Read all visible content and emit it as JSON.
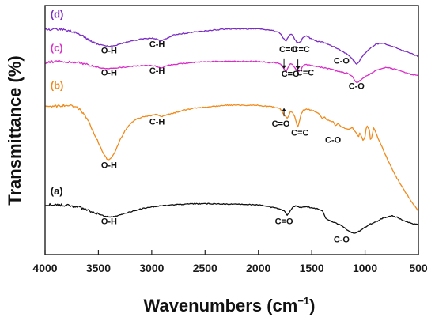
{
  "chart_data": {
    "type": "line",
    "title": "",
    "xlabel": "Wavenumbers (cm",
    "xlabel_sup": "−1",
    "xlabel_close": ")",
    "ylabel": "Transmittance (%)",
    "xlim": [
      4000,
      500
    ],
    "x_reversed": true,
    "x_ticks": [
      4000,
      3500,
      3000,
      2500,
      2000,
      1500,
      1000,
      500
    ],
    "y_ticks_shown": false,
    "grid": false,
    "series": [
      {
        "name": "(a)",
        "color": "#111111",
        "x": [
          4000,
          3900,
          3800,
          3700,
          3600,
          3500,
          3450,
          3400,
          3350,
          3300,
          3200,
          3100,
          3000,
          2900,
          2800,
          2600,
          2400,
          2200,
          2000,
          1900,
          1800,
          1760,
          1730,
          1700,
          1680,
          1650,
          1600,
          1550,
          1500,
          1450,
          1400,
          1370,
          1350,
          1300,
          1250,
          1200,
          1150,
          1100,
          1050,
          1000,
          950,
          900,
          850,
          800,
          750,
          700,
          650,
          600,
          550,
          500
        ],
        "y": [
          0.9,
          0.9,
          0.85,
          0.7,
          0.4,
          0.0,
          -0.2,
          -0.3,
          -0.25,
          -0.1,
          0.2,
          0.5,
          0.7,
          0.8,
          0.9,
          1.0,
          1.0,
          0.95,
          0.9,
          0.7,
          0.5,
          0.3,
          -0.1,
          0.3,
          0.6,
          0.8,
          0.6,
          0.7,
          0.6,
          0.5,
          0.3,
          -0.4,
          -0.6,
          -0.8,
          -1.0,
          -1.3,
          -1.7,
          -1.9,
          -1.7,
          -1.3,
          -1.0,
          -0.8,
          -0.5,
          -0.3,
          -0.2,
          -0.3,
          -0.6,
          -0.8,
          -1.0,
          -1.0
        ]
      },
      {
        "name": "(b)",
        "color": "#f08a1c",
        "x": [
          4000,
          3900,
          3800,
          3700,
          3650,
          3600,
          3550,
          3500,
          3450,
          3420,
          3400,
          3380,
          3350,
          3300,
          3250,
          3200,
          3150,
          3100,
          3050,
          3000,
          2950,
          2920,
          2900,
          2850,
          2800,
          2700,
          2600,
          2500,
          2400,
          2300,
          2200,
          2100,
          2000,
          1950,
          1900,
          1850,
          1800,
          1760,
          1730,
          1720,
          1700,
          1680,
          1660,
          1640,
          1630,
          1620,
          1600,
          1580,
          1550,
          1500,
          1450,
          1420,
          1400,
          1380,
          1350,
          1300,
          1280,
          1250,
          1230,
          1200,
          1180,
          1150,
          1120,
          1100,
          1080,
          1060,
          1050,
          1040,
          1030,
          1020,
          1000,
          990,
          980,
          960,
          950,
          940,
          920,
          900,
          850,
          800,
          750,
          700,
          650,
          600,
          550,
          500
        ],
        "y": [
          10.5,
          10.6,
          10.7,
          10.5,
          10.0,
          9.2,
          8.2,
          7.0,
          5.9,
          5.4,
          5.3,
          5.5,
          6.0,
          7.2,
          8.2,
          8.9,
          9.3,
          9.5,
          9.6,
          9.7,
          9.8,
          9.6,
          9.6,
          9.8,
          9.9,
          10.2,
          10.4,
          10.5,
          10.6,
          10.7,
          10.7,
          10.7,
          10.7,
          10.6,
          10.6,
          10.5,
          10.4,
          9.8,
          9.4,
          9.6,
          10.1,
          10.0,
          9.6,
          8.8,
          8.6,
          8.9,
          9.8,
          10.2,
          10.3,
          10.2,
          10.0,
          9.7,
          9.4,
          9.5,
          9.2,
          9.1,
          8.7,
          8.9,
          8.6,
          8.5,
          8.4,
          8.3,
          8.5,
          8.2,
          7.9,
          7.6,
          8.0,
          7.8,
          7.5,
          7.2,
          7.6,
          8.4,
          8.6,
          8.3,
          7.3,
          7.4,
          8.5,
          8.0,
          6.8,
          5.6,
          4.5,
          3.5,
          2.6,
          1.8,
          1.0,
          0.3
        ]
      },
      {
        "name": "(c)",
        "color": "#d92ec8",
        "x": [
          4000,
          3900,
          3800,
          3700,
          3600,
          3550,
          3500,
          3450,
          3400,
          3350,
          3300,
          3200,
          3100,
          3000,
          2950,
          2920,
          2900,
          2850,
          2800,
          2600,
          2400,
          2200,
          2000,
          1900,
          1850,
          1800,
          1760,
          1740,
          1720,
          1700,
          1680,
          1660,
          1640,
          1620,
          1600,
          1580,
          1550,
          1500,
          1450,
          1400,
          1350,
          1300,
          1250,
          1200,
          1150,
          1120,
          1100,
          1080,
          1060,
          1040,
          1000,
          950,
          900,
          850,
          800,
          750,
          700,
          650,
          600,
          550,
          500
        ],
        "y": [
          14.9,
          15.0,
          15.0,
          14.9,
          14.7,
          14.5,
          14.4,
          14.3,
          14.3,
          14.35,
          14.4,
          14.5,
          14.6,
          14.6,
          14.5,
          14.4,
          14.4,
          14.6,
          14.7,
          14.9,
          15.0,
          15.0,
          15.0,
          14.9,
          14.9,
          14.8,
          14.3,
          14.0,
          14.4,
          14.8,
          14.7,
          14.4,
          14.1,
          14.0,
          14.2,
          14.6,
          14.7,
          14.6,
          14.5,
          14.4,
          14.3,
          14.2,
          14.0,
          13.9,
          13.8,
          13.5,
          13.2,
          12.9,
          13.0,
          13.2,
          13.5,
          13.8,
          14.1,
          14.3,
          14.4,
          14.3,
          14.2,
          14.0,
          13.8,
          13.7,
          13.6
        ]
      },
      {
        "name": "(d)",
        "color": "#7b2cc4",
        "x": [
          4000,
          3900,
          3800,
          3700,
          3650,
          3600,
          3550,
          3500,
          3450,
          3400,
          3350,
          3300,
          3200,
          3100,
          3000,
          2950,
          2920,
          2900,
          2850,
          2800,
          2600,
          2400,
          2300,
          2200,
          2000,
          1900,
          1850,
          1800,
          1760,
          1740,
          1720,
          1700,
          1680,
          1660,
          1640,
          1620,
          1600,
          1580,
          1550,
          1500,
          1450,
          1400,
          1350,
          1300,
          1250,
          1200,
          1150,
          1100,
          1080,
          1060,
          1040,
          1000,
          950,
          900,
          850,
          800,
          750,
          700,
          650,
          600,
          550,
          500
        ],
        "y": [
          18.1,
          18.2,
          18.1,
          17.8,
          17.5,
          17.2,
          16.9,
          16.7,
          16.55,
          16.5,
          16.55,
          16.7,
          17.0,
          17.2,
          17.3,
          17.2,
          17.0,
          17.1,
          17.3,
          17.6,
          17.9,
          18.1,
          18.2,
          18.2,
          18.2,
          18.1,
          18.0,
          17.8,
          17.2,
          17.0,
          17.4,
          17.7,
          17.6,
          17.2,
          16.9,
          16.8,
          17.0,
          17.4,
          17.5,
          17.2,
          17.0,
          16.9,
          16.7,
          16.5,
          16.2,
          15.9,
          15.6,
          15.0,
          14.7,
          14.9,
          15.3,
          15.8,
          16.3,
          16.7,
          16.8,
          16.7,
          16.5,
          16.3,
          16.1,
          15.9,
          15.7,
          15.5
        ]
      }
    ],
    "curve_labels": [
      {
        "text": "(d)",
        "color": "#7b2cc4",
        "x": 3950,
        "y": 19.3
      },
      {
        "text": "(c)",
        "color": "#d92ec8",
        "x": 3950,
        "y": 16.0
      },
      {
        "text": "(b)",
        "color": "#f08a1c",
        "x": 3950,
        "y": 12.3
      },
      {
        "text": "(a)",
        "color": "#111111",
        "x": 3950,
        "y": 1.9
      }
    ],
    "annotations": [
      {
        "text": "O-H",
        "x": 3400,
        "y": 15.8
      },
      {
        "text": "C-H",
        "x": 2950,
        "y": 16.4
      },
      {
        "text": "C=O",
        "x": 1720,
        "y": 15.9
      },
      {
        "text": "C=C",
        "x": 1600,
        "y": 15.9
      },
      {
        "text": "C-O",
        "x": 1220,
        "y": 14.8
      },
      {
        "text": "O-H",
        "x": 3400,
        "y": 13.6
      },
      {
        "text": "C-H",
        "x": 2950,
        "y": 13.8
      },
      {
        "text": "C=O",
        "x": 1700,
        "y": 13.5
      },
      {
        "text": "C=C",
        "x": 1560,
        "y": 13.6
      },
      {
        "text": "C-O",
        "x": 1080,
        "y": 12.3
      },
      {
        "text": "O-H",
        "x": 3400,
        "y": 4.5
      },
      {
        "text": "C-H",
        "x": 2950,
        "y": 8.8
      },
      {
        "text": "C=O",
        "x": 1790,
        "y": 8.6
      },
      {
        "text": "C=C",
        "x": 1610,
        "y": 7.7
      },
      {
        "text": "C-O",
        "x": 1300,
        "y": 7.0
      },
      {
        "text": "O-H",
        "x": 3400,
        "y": -1.0
      },
      {
        "text": "C=O",
        "x": 1760,
        "y": -1.0
      },
      {
        "text": "C-O",
        "x": 1220,
        "y": -2.8
      }
    ],
    "arrows": [
      {
        "x": 1760,
        "from_y": 15.3,
        "to_y": 14.3
      },
      {
        "x": 1630,
        "from_y": 15.2,
        "to_y": 14.2
      },
      {
        "x": 1760,
        "from_y": 9.6,
        "to_y": 10.4
      }
    ]
  }
}
